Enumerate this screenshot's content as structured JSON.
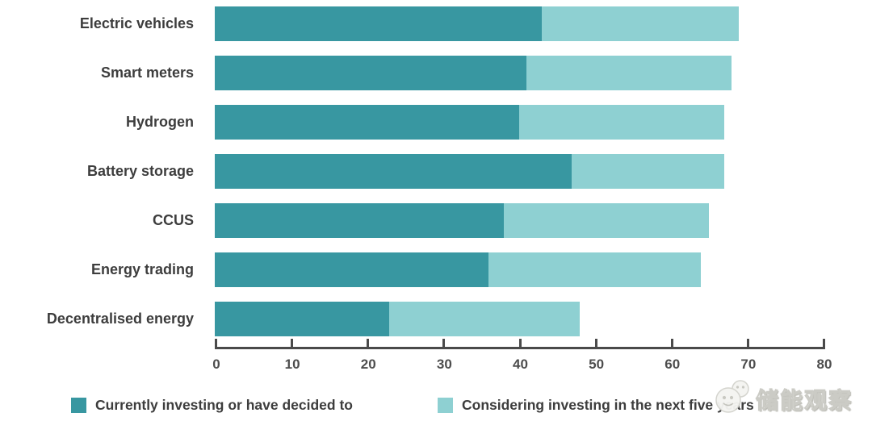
{
  "watermark": {
    "icon": "wechat-logo-icon",
    "text": "储能观察"
  },
  "colors": {
    "series_dark": "#3897a1",
    "series_light": "#8ed0d2",
    "axis": "#4a4a4a",
    "label_text": "#3d3d3d"
  },
  "chart_data": {
    "type": "bar",
    "orientation": "horizontal",
    "stacked": true,
    "title": "",
    "xlabel": "",
    "ylabel": "",
    "categories": [
      "Electric vehicles",
      "Smart meters",
      "Hydrogen",
      "Battery storage",
      "CCUS",
      "Energy trading",
      "Decentralised energy"
    ],
    "series": [
      {
        "name": "Currently investing or have decided to",
        "color": "#3897a1",
        "values": [
          43,
          41,
          40,
          47,
          38,
          36,
          23
        ]
      },
      {
        "name": "Considering investing in the next five years",
        "color": "#8ed0d2",
        "values": [
          26,
          27,
          27,
          20,
          27,
          28,
          25
        ]
      }
    ],
    "totals": [
      69,
      68,
      67,
      67,
      65,
      64,
      48
    ],
    "xlim": [
      0,
      80
    ],
    "xticks": [
      0,
      10,
      20,
      30,
      40,
      50,
      60,
      70,
      80
    ],
    "grid": false,
    "legend_position": "bottom"
  }
}
